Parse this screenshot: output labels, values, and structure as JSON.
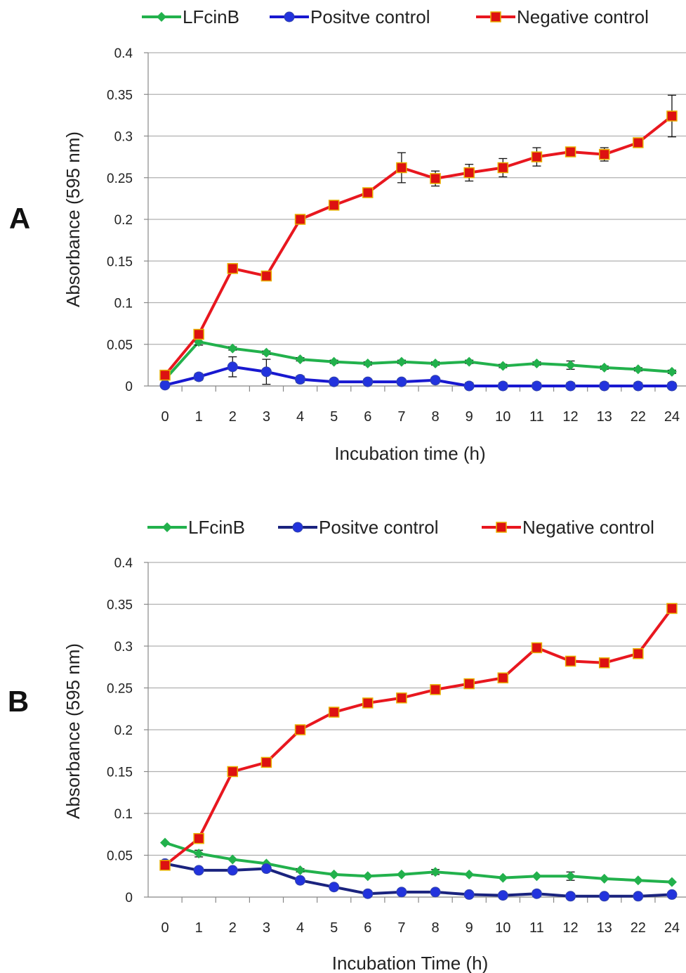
{
  "colors": {
    "green": "#22b14c",
    "blue_a": "#1818d0",
    "navy_b": "#1a237e",
    "point_b": "#2233dd",
    "red": "#e8171f",
    "marker_red": "#dd1111",
    "marker_edge": "#e8b000",
    "grid": "#b0b0b0",
    "axis": "#888888"
  },
  "chart_data": [
    {
      "panel_label": "A",
      "type": "line",
      "xlabel": "Incubation time (h)",
      "ylabel": "Absorbance (595 nm)",
      "categories": [
        "0",
        "1",
        "2",
        "3",
        "4",
        "5",
        "6",
        "7",
        "8",
        "9",
        "10",
        "11",
        "12",
        "13",
        "22",
        "24"
      ],
      "ylim": [
        0,
        0.4
      ],
      "yticks": [
        "0",
        "0.05",
        "0.1",
        "0.15",
        "0.2",
        "0.25",
        "0.3",
        "0.35",
        "0.4"
      ],
      "grid": true,
      "legend_position": "top",
      "series": [
        {
          "name": "LFcinB",
          "color": "#22b14c",
          "marker": "diamond",
          "values": [
            0.008,
            0.053,
            0.045,
            0.04,
            0.032,
            0.029,
            0.027,
            0.029,
            0.027,
            0.029,
            0.024,
            0.027,
            0.025,
            0.022,
            0.02,
            0.017
          ],
          "errors": [
            0,
            0.004,
            0.002,
            0.002,
            0.002,
            0.002,
            0.002,
            0.002,
            0.002,
            0.002,
            0.002,
            0.002,
            0.005,
            0.002,
            0.002,
            0.002
          ]
        },
        {
          "name": "Positve control",
          "color": "#1818d0",
          "marker": "circle",
          "values": [
            0.001,
            0.011,
            0.023,
            0.017,
            0.008,
            0.005,
            0.005,
            0.005,
            0.007,
            0,
            0,
            0,
            0,
            0,
            0,
            0
          ],
          "errors": [
            0,
            0.004,
            0.012,
            0.015,
            0.004,
            0.002,
            0.002,
            0.002,
            0.002,
            0.004,
            0.004,
            0.004,
            0.004,
            0.004,
            0.004,
            0.004
          ]
        },
        {
          "name": "Negative control",
          "color": "#e8171f",
          "marker": "square",
          "values": [
            0.013,
            0.062,
            0.141,
            0.132,
            0.2,
            0.217,
            0.232,
            0.262,
            0.249,
            0.256,
            0.262,
            0.275,
            0.281,
            0.278,
            0.292,
            0.324
          ],
          "errors": [
            0,
            0,
            0,
            0,
            0,
            0.005,
            0.005,
            0.018,
            0.009,
            0.01,
            0.011,
            0.011,
            0,
            0.008,
            0,
            0.025
          ]
        }
      ]
    },
    {
      "panel_label": "B",
      "type": "line",
      "xlabel": "Incubation Time (h)",
      "ylabel": "Absorbance (595 nm)",
      "categories": [
        "0",
        "1",
        "2",
        "3",
        "4",
        "5",
        "6",
        "7",
        "8",
        "9",
        "10",
        "11",
        "12",
        "13",
        "22",
        "24"
      ],
      "ylim": [
        0,
        0.4
      ],
      "yticks": [
        "0",
        "0.05",
        "0.1",
        "0.15",
        "0.2",
        "0.25",
        "0.3",
        "0.35",
        "0.4"
      ],
      "grid": true,
      "legend_position": "top",
      "series": [
        {
          "name": "LFcinB",
          "color": "#22b14c",
          "marker": "diamond",
          "values": [
            0.065,
            0.052,
            0.045,
            0.04,
            0.032,
            0.027,
            0.025,
            0.027,
            0.03,
            0.027,
            0.023,
            0.025,
            0.025,
            0.022,
            0.02,
            0.018
          ],
          "errors": [
            0,
            0.004,
            0,
            0,
            0.002,
            0,
            0,
            0,
            0.003,
            0,
            0,
            0,
            0.005,
            0,
            0,
            0
          ]
        },
        {
          "name": "Positve control",
          "color": "#1a237e",
          "marker": "circle",
          "values": [
            0.04,
            0.032,
            0.032,
            0.034,
            0.02,
            0.012,
            0.004,
            0.006,
            0.006,
            0.003,
            0.002,
            0.004,
            0.001,
            0.001,
            0.001,
            0.003
          ],
          "errors": [
            0,
            0,
            0,
            0,
            0,
            0,
            0,
            0,
            0,
            0,
            0,
            0,
            0,
            0,
            0,
            0
          ]
        },
        {
          "name": "Negative control",
          "color": "#e8171f",
          "marker": "square",
          "values": [
            0.038,
            0.07,
            0.15,
            0.161,
            0.2,
            0.221,
            0.232,
            0.238,
            0.248,
            0.255,
            0.262,
            0.298,
            0.282,
            0.28,
            0.291,
            0.345
          ],
          "errors": [
            0,
            0,
            0,
            0,
            0,
            0,
            0,
            0,
            0,
            0,
            0,
            0,
            0,
            0,
            0,
            0
          ]
        }
      ]
    }
  ]
}
